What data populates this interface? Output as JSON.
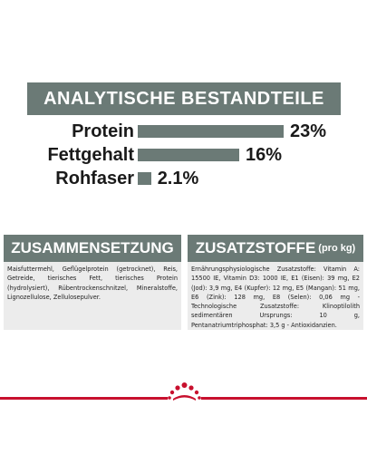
{
  "title": "ANALYTISCHE BESTANDTEILE",
  "nutrients": [
    {
      "label": "Protein",
      "value_text": "23%",
      "value": 23
    },
    {
      "label": "Fettgehalt",
      "value_text": "16%",
      "value": 16
    },
    {
      "label": "Rohfaser",
      "value_text": "2.1%",
      "value": 2.1
    }
  ],
  "composition": {
    "heading": "ZUSAMMENSETZUNG",
    "text": "Maisfuttermehl, Geflügelprotein (getrocknet), Reis, Getreide, tierisches Fett, tierisches Protein (hydrolysiert), Rübentrockenschnitzel, Mineralstoffe, Lignozellulose, Zellulosepulver."
  },
  "additives": {
    "heading": "ZUSATZSTOFFE",
    "heading_suffix": "(pro kg)",
    "text": "Ernährungsphysiologische Zusatzstoffe: Vitamin A: 15500 IE, Vitamin D3: 1000 IE, E1 (Eisen): 39 mg, E2 (Jod): 3,9 mg, E4 (Kupfer): 12 mg, E5 (Mangan): 51 mg, E6 (Zink): 128 mg, E8 (Selen): 0,06 mg - Technologische Zusatzstoffe: Klinoptilolith sedimentären Ursprungs: 10 g, Pentanatriumtriphosphat: 3,5 g - Antioxidanzien."
  },
  "colors": {
    "accent_gray": "#6b7a76",
    "brand_red": "#c8102e"
  },
  "logo_icon": "royal-canin-crown-logo"
}
